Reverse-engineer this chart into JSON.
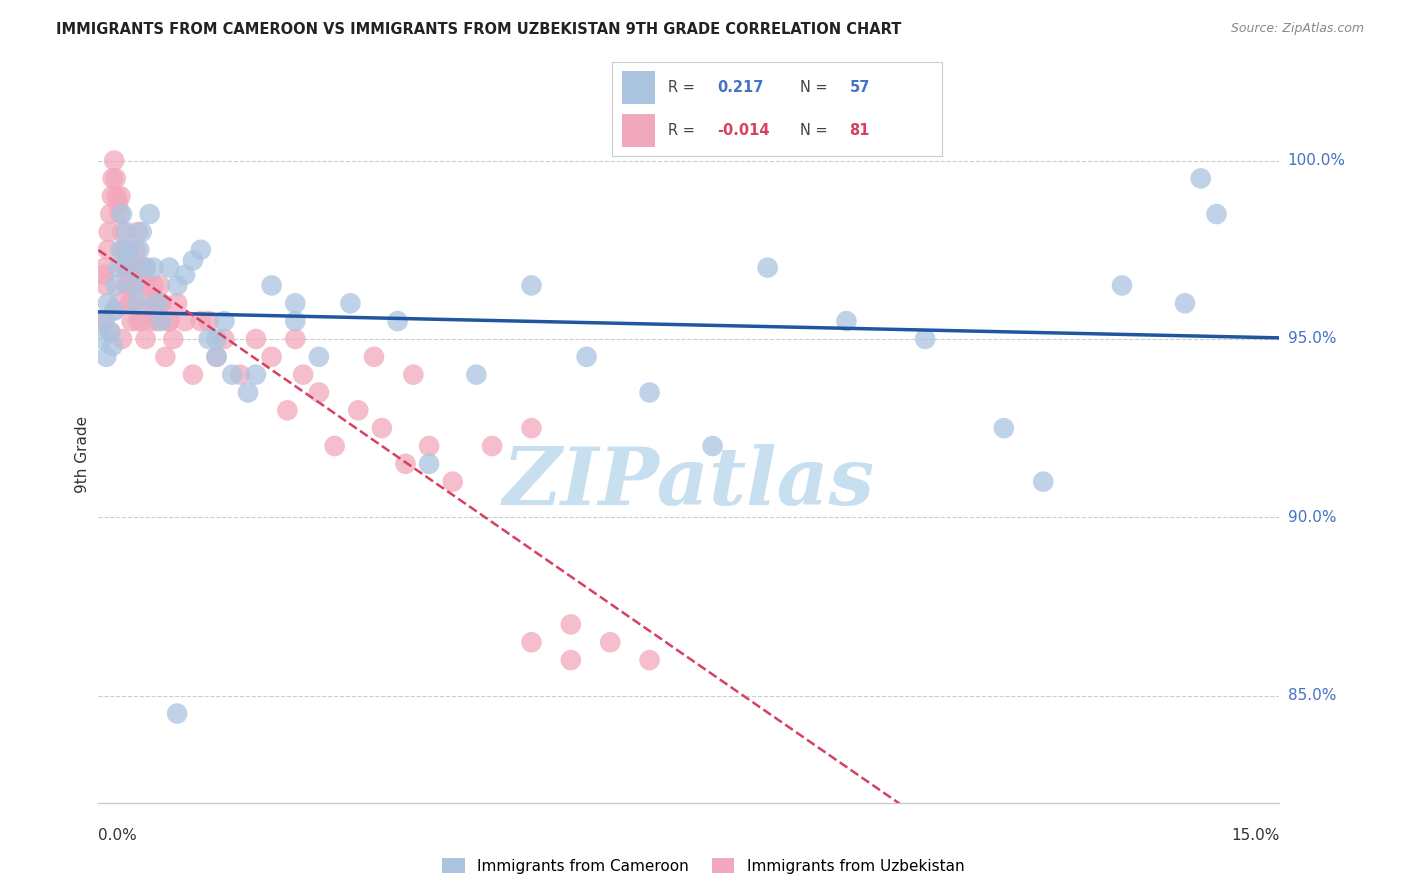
{
  "title": "IMMIGRANTS FROM CAMEROON VS IMMIGRANTS FROM UZBEKISTAN 9TH GRADE CORRELATION CHART",
  "source": "Source: ZipAtlas.com",
  "ylabel": "9th Grade",
  "xmin": 0.0,
  "xmax": 15.0,
  "ymin": 82.0,
  "ymax": 101.5,
  "ytick_vals": [
    85.0,
    90.0,
    95.0,
    100.0
  ],
  "ytick_labels": [
    "85.0%",
    "90.0%",
    "95.0%",
    "100.0%"
  ],
  "r_blue": "0.217",
  "n_blue": "57",
  "r_pink": "-0.014",
  "n_pink": "81",
  "blue_scatter_color": "#aac4e0",
  "pink_scatter_color": "#f2a8bc",
  "blue_line_color": "#2055a0",
  "pink_line_color": "#d84060",
  "grid_color": "#cccccc",
  "watermark_zip": "ZIP",
  "watermark_atlas": "atlas",
  "watermark_color_zip": "#c8dff0",
  "watermark_color_atlas": "#c8dff0",
  "legend_label_blue": "Immigrants from Cameroon",
  "legend_label_pink": "Immigrants from Uzbekistan",
  "blue_x": [
    0.05,
    0.08,
    0.1,
    0.12,
    0.15,
    0.18,
    0.2,
    0.22,
    0.25,
    0.28,
    0.3,
    0.35,
    0.38,
    0.4,
    0.45,
    0.5,
    0.52,
    0.55,
    0.6,
    0.65,
    0.7,
    0.75,
    0.8,
    0.9,
    1.0,
    1.1,
    1.2,
    1.3,
    1.4,
    1.5,
    1.6,
    1.7,
    1.9,
    2.2,
    2.5,
    2.8,
    3.2,
    3.8,
    4.2,
    4.8,
    5.5,
    6.2,
    7.0,
    7.8,
    8.5,
    9.5,
    10.5,
    11.5,
    12.0,
    13.0,
    13.8,
    14.0,
    14.2,
    1.0,
    1.5,
    2.0,
    2.5
  ],
  "blue_y": [
    95.0,
    95.5,
    94.5,
    96.0,
    95.2,
    94.8,
    95.8,
    96.5,
    97.0,
    97.5,
    98.5,
    98.0,
    97.5,
    97.0,
    96.5,
    96.0,
    97.5,
    98.0,
    97.0,
    98.5,
    97.0,
    96.0,
    95.5,
    97.0,
    96.5,
    96.8,
    97.2,
    97.5,
    95.0,
    94.5,
    95.5,
    94.0,
    93.5,
    96.5,
    96.0,
    94.5,
    96.0,
    95.5,
    91.5,
    94.0,
    96.5,
    94.5,
    93.5,
    92.0,
    97.0,
    95.5,
    95.0,
    92.5,
    91.0,
    96.5,
    96.0,
    99.5,
    98.5,
    84.5,
    95.0,
    94.0,
    95.5
  ],
  "pink_x": [
    0.05,
    0.07,
    0.08,
    0.1,
    0.12,
    0.13,
    0.15,
    0.17,
    0.18,
    0.2,
    0.22,
    0.23,
    0.25,
    0.27,
    0.28,
    0.3,
    0.32,
    0.33,
    0.35,
    0.37,
    0.38,
    0.4,
    0.42,
    0.45,
    0.47,
    0.48,
    0.5,
    0.52,
    0.55,
    0.58,
    0.6,
    0.62,
    0.65,
    0.68,
    0.7,
    0.72,
    0.75,
    0.78,
    0.8,
    0.85,
    0.9,
    0.95,
    1.0,
    1.1,
    1.2,
    1.3,
    1.5,
    1.6,
    1.8,
    2.0,
    2.2,
    2.4,
    2.6,
    2.8,
    3.0,
    3.3,
    3.6,
    3.9,
    4.2,
    4.5,
    5.0,
    5.5,
    6.0,
    6.5,
    7.0,
    1.4,
    2.5,
    3.5,
    4.0,
    5.5,
    6.0,
    0.15,
    0.2,
    0.25,
    0.3,
    0.35,
    0.5,
    0.6,
    0.7,
    0.8,
    0.9
  ],
  "pink_y": [
    95.5,
    96.8,
    97.0,
    96.5,
    97.5,
    98.0,
    98.5,
    99.0,
    99.5,
    100.0,
    99.5,
    99.0,
    98.8,
    98.5,
    99.0,
    98.0,
    97.5,
    97.0,
    97.5,
    97.0,
    96.5,
    96.0,
    95.5,
    96.0,
    97.0,
    97.5,
    98.0,
    97.0,
    95.5,
    96.5,
    97.0,
    96.5,
    96.0,
    95.5,
    96.5,
    96.0,
    95.5,
    96.5,
    96.0,
    94.5,
    95.5,
    95.0,
    96.0,
    95.5,
    94.0,
    95.5,
    94.5,
    95.0,
    94.0,
    95.0,
    94.5,
    93.0,
    94.0,
    93.5,
    92.0,
    93.0,
    92.5,
    91.5,
    92.0,
    91.0,
    92.0,
    92.5,
    87.0,
    86.5,
    86.0,
    95.5,
    95.0,
    94.5,
    94.0,
    86.5,
    86.0,
    95.2,
    95.8,
    96.0,
    95.0,
    96.5,
    95.5,
    95.0,
    95.8,
    96.0,
    95.5
  ]
}
